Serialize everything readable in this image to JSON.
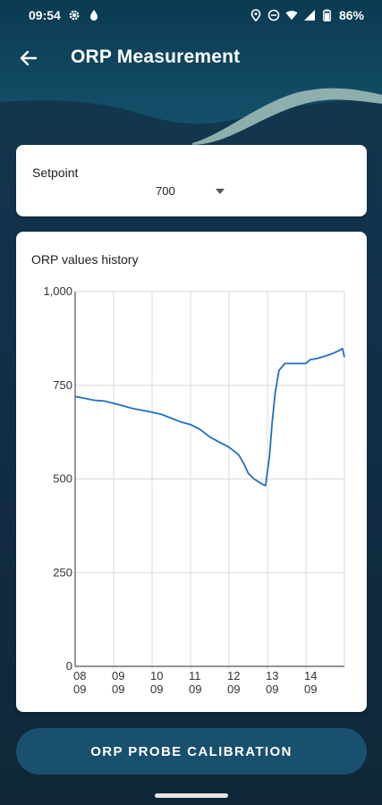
{
  "status_bar": {
    "time": "09:54",
    "battery": "86%",
    "icons": [
      "gear-icon",
      "drop-icon",
      "location-icon",
      "dnd-icon",
      "wifi-icon",
      "signal-icon",
      "battery-icon"
    ]
  },
  "app_bar": {
    "title": "ORP Measurement",
    "back_icon": "arrow-left-icon"
  },
  "setpoint": {
    "label": "Setpoint",
    "value": "700"
  },
  "history": {
    "title": "ORP values history"
  },
  "chart_data": {
    "type": "line",
    "title": "ORP values history",
    "xlabel": "",
    "ylabel": "",
    "ylim": [
      0,
      1000
    ],
    "yticks": [
      0,
      250,
      500,
      750,
      1000
    ],
    "ytick_labels": [
      "0",
      "250",
      "500",
      "750",
      "1,000"
    ],
    "xticks": [
      {
        "day": 8.0,
        "label": [
          "08",
          "09"
        ]
      },
      {
        "day": 9.0,
        "label": [
          "09",
          "09"
        ]
      },
      {
        "day": 10.0,
        "label": [
          "10",
          "09"
        ]
      },
      {
        "day": 11.0,
        "label": [
          "11",
          "09"
        ]
      },
      {
        "day": 12.0,
        "label": [
          "12",
          "09"
        ]
      },
      {
        "day": 13.0,
        "label": [
          "13",
          "09"
        ]
      },
      {
        "day": 14.0,
        "label": [
          "14",
          "09"
        ]
      }
    ],
    "xlim": [
      8.0,
      15.0
    ],
    "grid": true,
    "series": [
      {
        "color": "#1f6fc5",
        "points": [
          [
            8.0,
            720
          ],
          [
            8.25,
            715
          ],
          [
            8.5,
            710
          ],
          [
            8.75,
            708
          ],
          [
            9.0,
            702
          ],
          [
            9.25,
            695
          ],
          [
            9.5,
            688
          ],
          [
            9.75,
            683
          ],
          [
            10.0,
            678
          ],
          [
            10.25,
            672
          ],
          [
            10.5,
            662
          ],
          [
            10.75,
            652
          ],
          [
            11.0,
            645
          ],
          [
            11.25,
            632
          ],
          [
            11.5,
            612
          ],
          [
            11.75,
            598
          ],
          [
            12.0,
            585
          ],
          [
            12.25,
            565
          ],
          [
            12.4,
            538
          ],
          [
            12.5,
            515
          ],
          [
            12.65,
            500
          ],
          [
            12.8,
            490
          ],
          [
            12.95,
            482
          ],
          [
            13.05,
            560
          ],
          [
            13.12,
            650
          ],
          [
            13.2,
            730
          ],
          [
            13.3,
            790
          ],
          [
            13.45,
            808
          ],
          [
            13.7,
            808
          ],
          [
            14.0,
            808
          ],
          [
            14.1,
            818
          ],
          [
            14.3,
            822
          ],
          [
            14.5,
            828
          ],
          [
            14.7,
            835
          ],
          [
            14.85,
            842
          ],
          [
            14.95,
            848
          ],
          [
            15.0,
            825
          ]
        ]
      }
    ]
  },
  "calibration_button": {
    "label": "ORP PROBE CALIBRATION"
  },
  "colors": {
    "header_dark": "#0e3c52",
    "wave": "#8faeae",
    "background": "#12304a",
    "accent": "#19506d",
    "line": "#1f6fc5"
  }
}
